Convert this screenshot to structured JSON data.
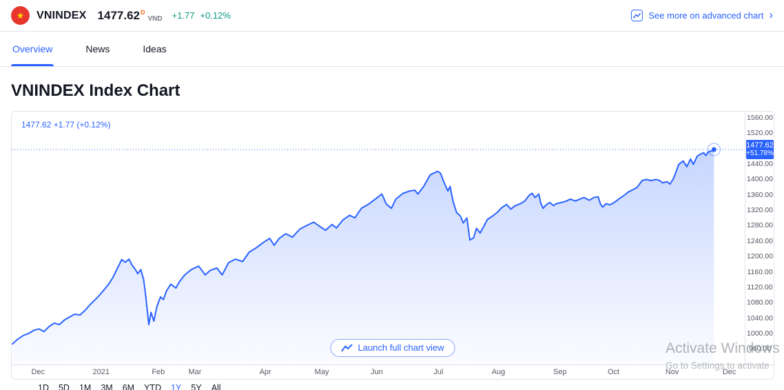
{
  "header": {
    "flag_icon": "vietnam-flag",
    "symbol": "VNINDEX",
    "price": "1477.62",
    "price_superscript": "D",
    "currency": "VND",
    "change": "+1.77",
    "change_percent": "+0.12%",
    "advanced_chart_link": "See more on advanced chart",
    "chevron": "›",
    "colors": {
      "accent_blue": "#2962ff",
      "gain_green": "#089981",
      "flag_red": "#e8352e",
      "star_yellow": "#ffd900",
      "superscript_orange": "#f7631b"
    }
  },
  "tabs": [
    {
      "label": "Overview",
      "active": true
    },
    {
      "label": "News",
      "active": false
    },
    {
      "label": "Ideas",
      "active": false
    }
  ],
  "page_title": "VNINDEX Index Chart",
  "chart": {
    "legend": "1477.62 +1.77 (+0.12%)",
    "badge_price": "1477.62",
    "badge_change_percent": "+51.78%",
    "launch_button_label": "Launch full chart view"
  },
  "chart_data": {
    "type": "area",
    "title": "VNINDEX Index Chart",
    "symbol": "VNINDEX",
    "period": "1Y",
    "line_color": "#2962ff",
    "fill_color": "rgba(41,98,255,0.26)",
    "grid": false,
    "last_value": 1477.62,
    "last_change": "+1.77",
    "last_change_percent": "+0.12%",
    "period_change_percent": "+51.78%",
    "y_axis": {
      "top_value": 1576,
      "bottom_value": 919.5
    },
    "y_ticks": [
      1560,
      1520,
      1480,
      1440,
      1400,
      1360,
      1320,
      1280,
      1240,
      1200,
      1160,
      1120,
      1080,
      1040,
      1000,
      960
    ],
    "x_ticks": [
      {
        "label": "Dec",
        "f": 0.036
      },
      {
        "label": "2021",
        "f": 0.122
      },
      {
        "label": "Feb",
        "f": 0.2
      },
      {
        "label": "Mar",
        "f": 0.25
      },
      {
        "label": "Apr",
        "f": 0.346
      },
      {
        "label": "May",
        "f": 0.423
      },
      {
        "label": "Jun",
        "f": 0.498
      },
      {
        "label": "Jul",
        "f": 0.582
      },
      {
        "label": "Aug",
        "f": 0.664
      },
      {
        "label": "Sep",
        "f": 0.748
      },
      {
        "label": "Oct",
        "f": 0.821
      },
      {
        "label": "Nov",
        "f": 0.901
      },
      {
        "label": "Dec",
        "f": 0.979
      }
    ],
    "points": [
      [
        0.001,
        973
      ],
      [
        0.008,
        985
      ],
      [
        0.016,
        995
      ],
      [
        0.023,
        1000
      ],
      [
        0.03,
        1008
      ],
      [
        0.037,
        1012
      ],
      [
        0.044,
        1005
      ],
      [
        0.051,
        1018
      ],
      [
        0.058,
        1027
      ],
      [
        0.065,
        1023
      ],
      [
        0.072,
        1035
      ],
      [
        0.079,
        1043
      ],
      [
        0.086,
        1050
      ],
      [
        0.093,
        1048
      ],
      [
        0.1,
        1060
      ],
      [
        0.107,
        1075
      ],
      [
        0.115,
        1090
      ],
      [
        0.121,
        1102
      ],
      [
        0.128,
        1118
      ],
      [
        0.133,
        1130
      ],
      [
        0.138,
        1145
      ],
      [
        0.143,
        1165
      ],
      [
        0.147,
        1180
      ],
      [
        0.15,
        1192
      ],
      [
        0.155,
        1185
      ],
      [
        0.16,
        1193
      ],
      [
        0.164,
        1178
      ],
      [
        0.168,
        1168
      ],
      [
        0.172,
        1155
      ],
      [
        0.176,
        1166
      ],
      [
        0.18,
        1140
      ],
      [
        0.183,
        1095
      ],
      [
        0.187,
        1023
      ],
      [
        0.19,
        1055
      ],
      [
        0.194,
        1032
      ],
      [
        0.198,
        1070
      ],
      [
        0.203,
        1095
      ],
      [
        0.207,
        1088
      ],
      [
        0.211,
        1110
      ],
      [
        0.217,
        1128
      ],
      [
        0.224,
        1118
      ],
      [
        0.229,
        1135
      ],
      [
        0.236,
        1152
      ],
      [
        0.245,
        1166
      ],
      [
        0.255,
        1175
      ],
      [
        0.264,
        1152
      ],
      [
        0.271,
        1164
      ],
      [
        0.28,
        1170
      ],
      [
        0.287,
        1152
      ],
      [
        0.296,
        1184
      ],
      [
        0.305,
        1193
      ],
      [
        0.315,
        1187
      ],
      [
        0.324,
        1211
      ],
      [
        0.334,
        1223
      ],
      [
        0.343,
        1236
      ],
      [
        0.352,
        1247
      ],
      [
        0.358,
        1229
      ],
      [
        0.365,
        1247
      ],
      [
        0.374,
        1259
      ],
      [
        0.383,
        1250
      ],
      [
        0.393,
        1271
      ],
      [
        0.402,
        1280
      ],
      [
        0.412,
        1289
      ],
      [
        0.421,
        1277
      ],
      [
        0.428,
        1268
      ],
      [
        0.437,
        1283
      ],
      [
        0.443,
        1274
      ],
      [
        0.452,
        1295
      ],
      [
        0.461,
        1307
      ],
      [
        0.468,
        1300
      ],
      [
        0.477,
        1325
      ],
      [
        0.487,
        1336
      ],
      [
        0.496,
        1349
      ],
      [
        0.505,
        1362
      ],
      [
        0.511,
        1336
      ],
      [
        0.518,
        1325
      ],
      [
        0.524,
        1349
      ],
      [
        0.534,
        1364
      ],
      [
        0.543,
        1370
      ],
      [
        0.55,
        1372
      ],
      [
        0.554,
        1362
      ],
      [
        0.562,
        1382
      ],
      [
        0.571,
        1412
      ],
      [
        0.581,
        1421
      ],
      [
        0.585,
        1416
      ],
      [
        0.59,
        1391
      ],
      [
        0.595,
        1370
      ],
      [
        0.598,
        1382
      ],
      [
        0.602,
        1344
      ],
      [
        0.607,
        1314
      ],
      [
        0.612,
        1305
      ],
      [
        0.616,
        1287
      ],
      [
        0.621,
        1300
      ],
      [
        0.625,
        1243
      ],
      [
        0.63,
        1248
      ],
      [
        0.634,
        1273
      ],
      [
        0.639,
        1261
      ],
      [
        0.644,
        1278
      ],
      [
        0.649,
        1296
      ],
      [
        0.656,
        1305
      ],
      [
        0.662,
        1314
      ],
      [
        0.668,
        1326
      ],
      [
        0.675,
        1335
      ],
      [
        0.681,
        1323
      ],
      [
        0.687,
        1332
      ],
      [
        0.694,
        1337
      ],
      [
        0.7,
        1344
      ],
      [
        0.706,
        1359
      ],
      [
        0.71,
        1364
      ],
      [
        0.714,
        1353
      ],
      [
        0.719,
        1362
      ],
      [
        0.722,
        1337
      ],
      [
        0.725,
        1325
      ],
      [
        0.729,
        1334
      ],
      [
        0.734,
        1340
      ],
      [
        0.739,
        1332
      ],
      [
        0.743,
        1337
      ],
      [
        0.75,
        1340
      ],
      [
        0.757,
        1344
      ],
      [
        0.762,
        1349
      ],
      [
        0.769,
        1344
      ],
      [
        0.775,
        1349
      ],
      [
        0.781,
        1353
      ],
      [
        0.788,
        1346
      ],
      [
        0.794,
        1353
      ],
      [
        0.8,
        1355
      ],
      [
        0.803,
        1337
      ],
      [
        0.806,
        1328
      ],
      [
        0.811,
        1337
      ],
      [
        0.816,
        1334
      ],
      [
        0.822,
        1340
      ],
      [
        0.828,
        1349
      ],
      [
        0.835,
        1358
      ],
      [
        0.841,
        1367
      ],
      [
        0.847,
        1373
      ],
      [
        0.853,
        1379
      ],
      [
        0.86,
        1397
      ],
      [
        0.866,
        1400
      ],
      [
        0.872,
        1397
      ],
      [
        0.879,
        1400
      ],
      [
        0.884,
        1397
      ],
      [
        0.888,
        1391
      ],
      [
        0.894,
        1394
      ],
      [
        0.898,
        1388
      ],
      [
        0.903,
        1403
      ],
      [
        0.91,
        1439
      ],
      [
        0.916,
        1448
      ],
      [
        0.921,
        1433
      ],
      [
        0.926,
        1453
      ],
      [
        0.93,
        1439
      ],
      [
        0.935,
        1460
      ],
      [
        0.94,
        1466
      ],
      [
        0.944,
        1469
      ],
      [
        0.947,
        1462
      ],
      [
        0.95,
        1471
      ],
      [
        0.955,
        1474
      ],
      [
        0.958,
        1477.62
      ]
    ]
  },
  "time_ranges": [
    "1D",
    "5D",
    "1M",
    "3M",
    "6M",
    "YTD",
    "1Y",
    "5Y",
    "All"
  ],
  "active_range": "1Y",
  "watermark": {
    "line1": "Activate Windows",
    "line2": "Go to Settings to activate"
  }
}
